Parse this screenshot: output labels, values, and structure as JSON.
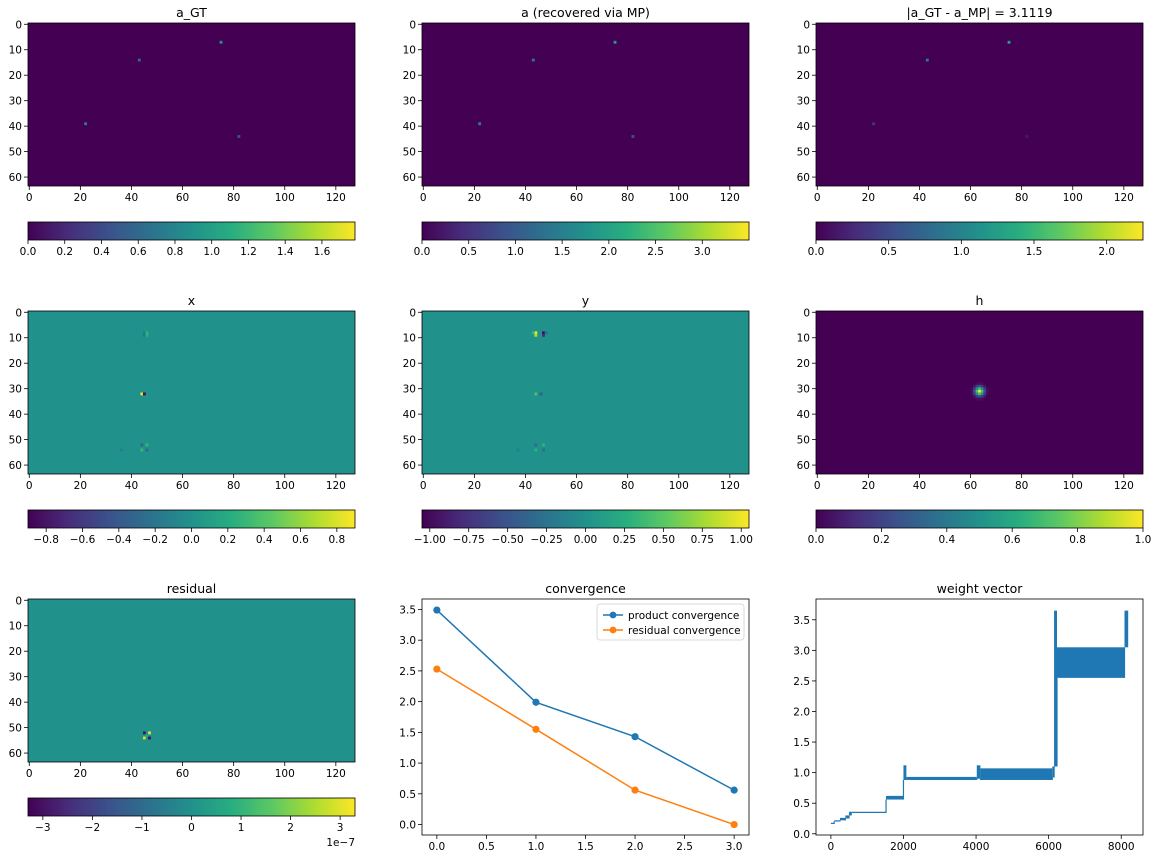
{
  "chart_data": [
    {
      "type": "heatmap",
      "title": "a_GT",
      "xticks": [
        "0",
        "20",
        "40",
        "60",
        "80",
        "100",
        "120"
      ],
      "yticks": [
        "0",
        "10",
        "20",
        "30",
        "40",
        "50",
        "60"
      ],
      "xlim": [
        -0.5,
        127.5
      ],
      "ylim": [
        63.5,
        -0.5
      ],
      "colormap": "viridis",
      "vmin": 0,
      "vmax": 1.78,
      "background_value": 0,
      "points": [
        {
          "x": 75,
          "y": 7,
          "value": 0.9
        },
        {
          "x": 43,
          "y": 14,
          "value": 0.6
        },
        {
          "x": 22,
          "y": 39,
          "value": 0.75
        },
        {
          "x": 82,
          "y": 44,
          "value": 0.45
        }
      ],
      "colorbar": {
        "ticks": [
          "0.0",
          "0.2",
          "0.4",
          "0.6",
          "0.8",
          "1.0",
          "1.2",
          "1.4",
          "1.6"
        ],
        "tick_values": [
          0,
          0.2,
          0.4,
          0.6,
          0.8,
          1.0,
          1.2,
          1.4,
          1.6
        ],
        "offset_label": ""
      }
    },
    {
      "type": "heatmap",
      "title": "a (recovered via MP)",
      "xticks": [
        "0",
        "20",
        "40",
        "60",
        "80",
        "100",
        "120"
      ],
      "yticks": [
        "0",
        "10",
        "20",
        "30",
        "40",
        "50",
        "60"
      ],
      "xlim": [
        -0.5,
        127.5
      ],
      "ylim": [
        63.5,
        -0.5
      ],
      "colormap": "viridis",
      "vmin": 0,
      "vmax": 3.5,
      "background_value": 0,
      "points": [
        {
          "x": 75,
          "y": 7,
          "value": 1.9
        },
        {
          "x": 43,
          "y": 14,
          "value": 1.4
        },
        {
          "x": 22,
          "y": 39,
          "value": 1.5
        },
        {
          "x": 82,
          "y": 44,
          "value": 0.9
        }
      ],
      "colorbar": {
        "ticks": [
          "0.0",
          "0.5",
          "1.0",
          "1.5",
          "2.0",
          "2.5",
          "3.0"
        ],
        "tick_values": [
          0,
          0.5,
          1.0,
          1.5,
          2.0,
          2.5,
          3.0
        ],
        "offset_label": ""
      }
    },
    {
      "type": "heatmap",
      "title": "|a_GT - a_MP| = 3.1119",
      "xticks": [
        "0",
        "20",
        "40",
        "60",
        "80",
        "100",
        "120"
      ],
      "yticks": [
        "0",
        "10",
        "20",
        "30",
        "40",
        "50",
        "60"
      ],
      "xlim": [
        -0.5,
        127.5
      ],
      "ylim": [
        63.5,
        -0.5
      ],
      "colormap": "viridis",
      "vmin": 0,
      "vmax": 2.25,
      "background_value": 0,
      "points": [
        {
          "x": 75,
          "y": 7,
          "value": 1.3
        },
        {
          "x": 43,
          "y": 14,
          "value": 0.9
        },
        {
          "x": 22,
          "y": 39,
          "value": 0.35
        },
        {
          "x": 82,
          "y": 44,
          "value": 0.15
        }
      ],
      "colorbar": {
        "ticks": [
          "0.0",
          "0.5",
          "1.0",
          "1.5",
          "2.0"
        ],
        "tick_values": [
          0,
          0.5,
          1.0,
          1.5,
          2.0
        ],
        "offset_label": ""
      }
    },
    {
      "type": "heatmap",
      "title": "x",
      "xticks": [
        "0",
        "20",
        "40",
        "60",
        "80",
        "100",
        "120"
      ],
      "yticks": [
        "0",
        "10",
        "20",
        "30",
        "40",
        "50",
        "60"
      ],
      "xlim": [
        -0.5,
        127.5
      ],
      "ylim": [
        63.5,
        -0.5
      ],
      "colormap": "viridis",
      "vmin": -0.9,
      "vmax": 0.9,
      "background_value": 0,
      "points": [
        {
          "x": 45,
          "y": 8,
          "value": -0.2
        },
        {
          "x": 45,
          "y": 9,
          "value": -0.2
        },
        {
          "x": 46,
          "y": 8,
          "value": 0.25
        },
        {
          "x": 46,
          "y": 9,
          "value": 0.25
        },
        {
          "x": 44,
          "y": 32,
          "value": 0.85
        },
        {
          "x": 45,
          "y": 32,
          "value": -0.85
        },
        {
          "x": 44,
          "y": 52,
          "value": -0.3
        },
        {
          "x": 46,
          "y": 52,
          "value": 0.3
        },
        {
          "x": 44,
          "y": 54,
          "value": 0.3
        },
        {
          "x": 46,
          "y": 54,
          "value": -0.3
        },
        {
          "x": 36,
          "y": 54,
          "value": -0.15
        }
      ],
      "colorbar": {
        "ticks": [
          "−0.8",
          "−0.6",
          "−0.4",
          "−0.2",
          "0.0",
          "0.2",
          "0.4",
          "0.6",
          "0.8"
        ],
        "tick_values": [
          -0.8,
          -0.6,
          -0.4,
          -0.2,
          0,
          0.2,
          0.4,
          0.6,
          0.8
        ],
        "offset_label": ""
      }
    },
    {
      "type": "heatmap",
      "title": "y",
      "xticks": [
        "0",
        "20",
        "40",
        "60",
        "80",
        "100",
        "120"
      ],
      "yticks": [
        "0",
        "10",
        "20",
        "30",
        "40",
        "50",
        "60"
      ],
      "xlim": [
        -0.5,
        127.5
      ],
      "ylim": [
        63.5,
        -0.5
      ],
      "colormap": "viridis",
      "vmin": -1.05,
      "vmax": 1.05,
      "background_value": 0,
      "points": [
        {
          "x": 44,
          "y": 8,
          "value": 1.0
        },
        {
          "x": 44,
          "y": 9,
          "value": 0.8
        },
        {
          "x": 47,
          "y": 8,
          "value": -1.0
        },
        {
          "x": 47,
          "y": 9,
          "value": -0.8
        },
        {
          "x": 43,
          "y": 8,
          "value": 0.35
        },
        {
          "x": 48,
          "y": 8,
          "value": -0.35
        },
        {
          "x": 44,
          "y": 32,
          "value": 0.45
        },
        {
          "x": 46,
          "y": 32,
          "value": -0.45
        },
        {
          "x": 44,
          "y": 52,
          "value": -0.3
        },
        {
          "x": 47,
          "y": 52,
          "value": 0.3
        },
        {
          "x": 44,
          "y": 54,
          "value": 0.3
        },
        {
          "x": 47,
          "y": 54,
          "value": -0.3
        },
        {
          "x": 37,
          "y": 54,
          "value": -0.15
        }
      ],
      "colorbar": {
        "ticks": [
          "−1.00",
          "−0.75",
          "−0.50",
          "−0.25",
          "0.00",
          "0.25",
          "0.50",
          "0.75",
          "1.00"
        ],
        "tick_values": [
          -1,
          -0.75,
          -0.5,
          -0.25,
          0,
          0.25,
          0.5,
          0.75,
          1
        ],
        "offset_label": ""
      }
    },
    {
      "type": "heatmap",
      "title": "h",
      "xticks": [
        "0",
        "20",
        "40",
        "60",
        "80",
        "100",
        "120"
      ],
      "yticks": [
        "0",
        "10",
        "20",
        "30",
        "40",
        "50",
        "60"
      ],
      "xlim": [
        -0.5,
        127.5
      ],
      "ylim": [
        63.5,
        -0.5
      ],
      "colormap": "viridis",
      "vmin": 0,
      "vmax": 1.0,
      "background_value": 0,
      "blob": {
        "x": 63.5,
        "y": 31,
        "sigma": 1.2,
        "peak": 1.0
      },
      "colorbar": {
        "ticks": [
          "0.0",
          "0.2",
          "0.4",
          "0.6",
          "0.8",
          "1.0"
        ],
        "tick_values": [
          0,
          0.2,
          0.4,
          0.6,
          0.8,
          1.0
        ],
        "offset_label": ""
      }
    },
    {
      "type": "heatmap",
      "title": "residual",
      "xticks": [
        "0",
        "20",
        "40",
        "60",
        "80",
        "100",
        "120"
      ],
      "yticks": [
        "0",
        "10",
        "20",
        "30",
        "40",
        "50",
        "60"
      ],
      "xlim": [
        -0.5,
        127.5
      ],
      "ylim": [
        63.5,
        -0.5
      ],
      "colormap": "viridis",
      "vmin": -3.3e-07,
      "vmax": 3.3e-07,
      "background_value": 0,
      "points": [
        {
          "x": 45,
          "y": 52,
          "value": -3e-07
        },
        {
          "x": 47,
          "y": 52,
          "value": 3e-07
        },
        {
          "x": 45,
          "y": 54,
          "value": 2.8e-07
        },
        {
          "x": 47,
          "y": 54,
          "value": -3e-07
        },
        {
          "x": 46,
          "y": 53,
          "value": 5e-08
        }
      ],
      "colorbar": {
        "ticks": [
          "−3",
          "−2",
          "−1",
          "0",
          "1",
          "2",
          "3"
        ],
        "tick_values": [
          -3e-07,
          -2e-07,
          -1e-07,
          0,
          1e-07,
          2e-07,
          3e-07
        ],
        "offset_label": "1e−7"
      }
    },
    {
      "type": "line",
      "title": "convergence",
      "xticks": [
        "0.0",
        "0.5",
        "1.0",
        "1.5",
        "2.0",
        "2.5",
        "3.0"
      ],
      "xtick_values": [
        0,
        0.5,
        1,
        1.5,
        2,
        2.5,
        3
      ],
      "yticks": [
        "0.0",
        "0.5",
        "1.0",
        "1.5",
        "2.0",
        "2.5",
        "3.0",
        "3.5"
      ],
      "ytick_values": [
        0,
        0.5,
        1,
        1.5,
        2,
        2.5,
        3,
        3.5
      ],
      "xlim": [
        -0.15,
        3.15
      ],
      "ylim": [
        -0.17,
        3.67
      ],
      "legend_position": "upper right",
      "x": [
        0,
        1,
        2,
        3
      ],
      "series": [
        {
          "name": "product convergence",
          "values": [
            3.49,
            1.99,
            1.43,
            0.56
          ],
          "color": "#1f77b4",
          "marker": "o"
        },
        {
          "name": "residual convergence",
          "values": [
            2.53,
            1.55,
            0.56,
            0.0
          ],
          "color": "#ff7f0e",
          "marker": "o"
        }
      ]
    },
    {
      "type": "line",
      "title": "weight vector",
      "xticks": [
        "0",
        "2000",
        "4000",
        "6000",
        "8000"
      ],
      "xtick_values": [
        0,
        2000,
        4000,
        6000,
        8000
      ],
      "yticks": [
        "0.0",
        "0.5",
        "1.0",
        "1.5",
        "2.0",
        "2.5",
        "3.0",
        "3.5"
      ],
      "ytick_values": [
        0,
        0.5,
        1,
        1.5,
        2,
        2.5,
        3,
        3.5
      ],
      "xlim": [
        -410,
        8600
      ],
      "ylim": [
        -0.02,
        3.84
      ],
      "color": "#1f77b4",
      "segments": [
        {
          "x0": 0,
          "x1": 90,
          "low": 0.16,
          "high": 0.18
        },
        {
          "x0": 90,
          "x1": 250,
          "low": 0.2,
          "high": 0.22
        },
        {
          "x0": 250,
          "x1": 400,
          "low": 0.22,
          "high": 0.26
        },
        {
          "x0": 400,
          "x1": 500,
          "low": 0.25,
          "high": 0.3
        },
        {
          "x0": 500,
          "x1": 560,
          "low": 0.3,
          "high": 0.36
        },
        {
          "x0": 560,
          "x1": 1520,
          "low": 0.34,
          "high": 0.36
        },
        {
          "x0": 1520,
          "x1": 2000,
          "low": 0.56,
          "high": 0.62
        },
        {
          "x0": 2000,
          "x1": 2080,
          "low": 0.88,
          "high": 1.12
        },
        {
          "x0": 2080,
          "x1": 4020,
          "low": 0.88,
          "high": 0.93
        },
        {
          "x0": 4020,
          "x1": 4120,
          "low": 0.9,
          "high": 1.12
        },
        {
          "x0": 4120,
          "x1": 6100,
          "low": 0.88,
          "high": 1.07
        },
        {
          "x0": 6100,
          "x1": 6150,
          "low": 0.92,
          "high": 1.1
        },
        {
          "x0": 6150,
          "x1": 6230,
          "low": 1.1,
          "high": 3.65
        },
        {
          "x0": 6230,
          "x1": 8090,
          "low": 2.55,
          "high": 3.05
        },
        {
          "x0": 8090,
          "x1": 8192,
          "low": 3.05,
          "high": 3.65
        }
      ]
    }
  ]
}
